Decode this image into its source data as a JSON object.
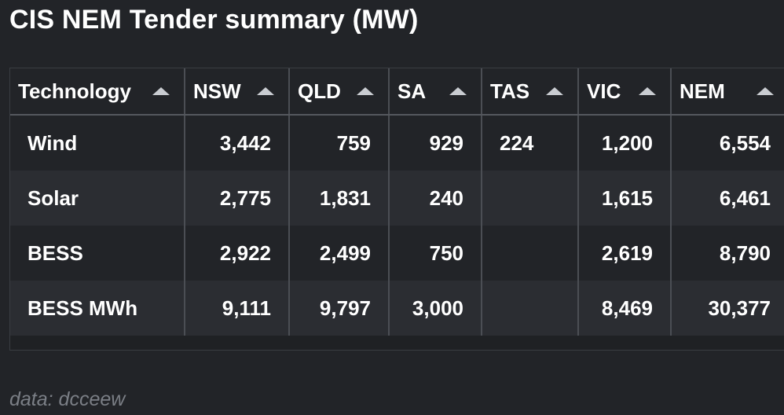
{
  "title": "CIS NEM Tender summary (MW)",
  "source": "data: dcceew",
  "chart_data": {
    "type": "table",
    "title": "CIS NEM Tender summary (MW)",
    "columns": [
      "Technology",
      "NSW",
      "QLD",
      "SA",
      "TAS",
      "VIC",
      "NEM"
    ],
    "sort_indicator": "ascending",
    "rows": [
      {
        "Technology": "Wind",
        "NSW": "3,442",
        "QLD": "759",
        "SA": "929",
        "TAS": "224",
        "VIC": "1,200",
        "NEM": "6,554"
      },
      {
        "Technology": "Solar",
        "NSW": "2,775",
        "QLD": "1,831",
        "SA": "240",
        "TAS": "",
        "VIC": "1,615",
        "NEM": "6,461"
      },
      {
        "Technology": "BESS",
        "NSW": "2,922",
        "QLD": "2,499",
        "SA": "750",
        "TAS": "",
        "VIC": "2,619",
        "NEM": "8,790"
      },
      {
        "Technology": "BESS MWh",
        "NSW": "9,111",
        "QLD": "9,797",
        "SA": "3,000",
        "TAS": "",
        "VIC": "8,469",
        "NEM": "30,377"
      }
    ]
  },
  "colors": {
    "background": "#222428",
    "row_alt": "#2b2d32",
    "grid": "#4b4e54",
    "text": "#ffffff",
    "source_text": "#7b7f86",
    "sort_icon": "#c9ccd1"
  },
  "icons": {
    "sort": "sort-ascending-icon"
  }
}
